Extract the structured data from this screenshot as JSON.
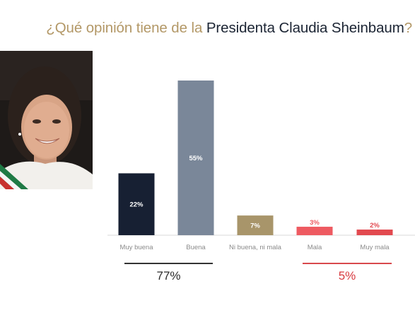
{
  "title": {
    "prefix": "¿Qué opinión tiene de la ",
    "name": "Presidenta Claudia Sheinbaum",
    "suffix": "?"
  },
  "groups": {
    "positive_total": "77%",
    "negative_total": "5%"
  },
  "colors": {
    "muy_buena": "#172033",
    "buena": "#7a8799",
    "neutral": "#a8956a",
    "mala": "#ee5a61",
    "muy_mala": "#e2494f",
    "title_gold": "#b39867",
    "title_dark": "#1b2433",
    "negative_red": "#d83a3f"
  },
  "chart_data": {
    "type": "bar",
    "title": "¿Qué opinión tiene de la Presidenta Claudia Sheinbaum?",
    "categories": [
      "Muy buena",
      "Buena",
      "Ni buena, ni mala",
      "Mala",
      "Muy mala"
    ],
    "values": [
      22,
      55,
      7,
      3,
      2
    ],
    "value_labels": [
      "22%",
      "55%",
      "7%",
      "3%",
      "2%"
    ],
    "bar_colors": [
      "#172033",
      "#7a8799",
      "#a8956a",
      "#ee5a61",
      "#e2494f"
    ],
    "ylim": [
      0,
      60
    ],
    "grid": false,
    "legend": "none"
  }
}
